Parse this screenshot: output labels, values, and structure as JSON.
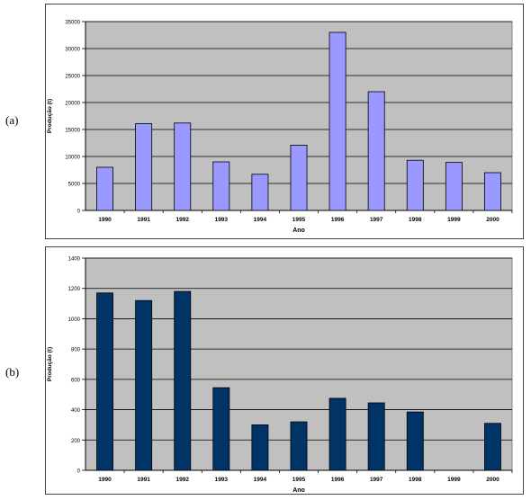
{
  "panels": [
    {
      "label": "(a)"
    },
    {
      "label": "(b)"
    }
  ],
  "colors": {
    "plot_bg": "#c0c0c0",
    "chart_a_bar": "#9999ff",
    "chart_b_bar": "#003366",
    "bar_stroke": "#000000",
    "grid": "#000000"
  },
  "chart_data": [
    {
      "type": "bar",
      "categories": [
        "1990",
        "1991",
        "1992",
        "1993",
        "1994",
        "1995",
        "1996",
        "1997",
        "1998",
        "1999",
        "2000"
      ],
      "values": [
        8000,
        16100,
        16200,
        9000,
        6700,
        12100,
        33000,
        22000,
        9300,
        8900,
        7000
      ],
      "ylim": [
        0,
        35000
      ],
      "yticks": [
        "0",
        "5000",
        "10000",
        "15000",
        "20000",
        "25000",
        "30000",
        "35000"
      ],
      "ytick_values": [
        0,
        5000,
        10000,
        15000,
        20000,
        25000,
        30000,
        35000
      ],
      "xlabel": "Ano",
      "ylabel": "Produção (t)",
      "grid": true
    },
    {
      "type": "bar",
      "categories": [
        "1990",
        "1991",
        "1992",
        "1993",
        "1994",
        "1995",
        "1996",
        "1997",
        "1998",
        "1999",
        "2000"
      ],
      "values": [
        1170,
        1120,
        1180,
        545,
        300,
        320,
        475,
        445,
        385,
        0,
        310
      ],
      "ylim": [
        0,
        1400
      ],
      "yticks": [
        "0",
        "200",
        "400",
        "600",
        "800",
        "1000",
        "1200",
        "1400"
      ],
      "ytick_values": [
        0,
        200,
        400,
        600,
        800,
        1000,
        1200,
        1400
      ],
      "xlabel": "Ano",
      "ylabel": "Produção (t)",
      "grid": true
    }
  ]
}
